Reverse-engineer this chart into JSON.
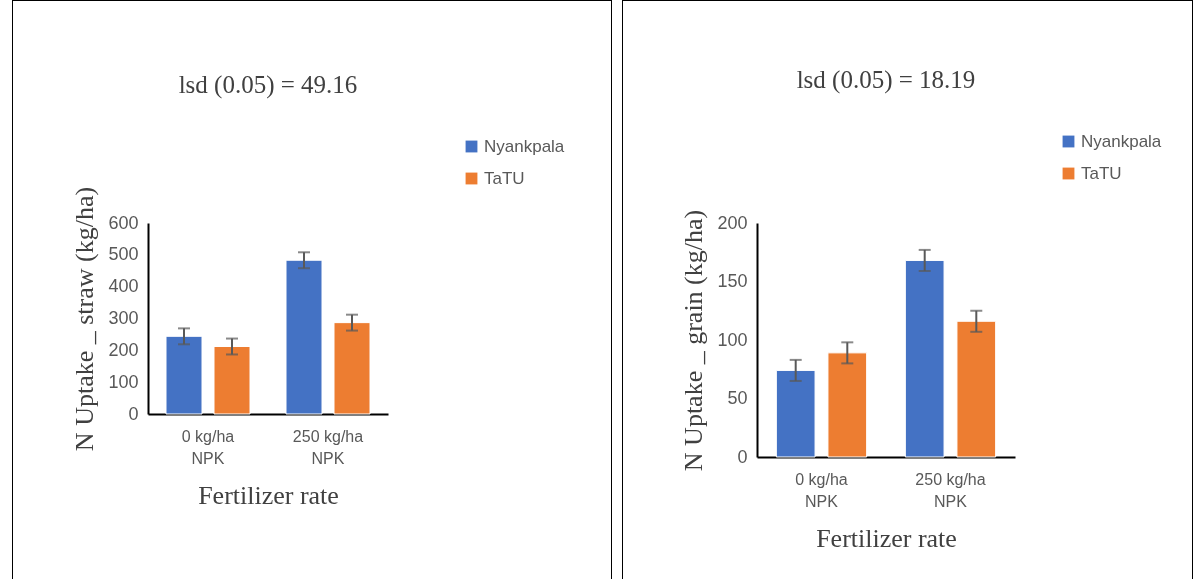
{
  "chart_data": [
    {
      "type": "bar",
      "title": "lsd (0.05) = 49.16",
      "xlabel": "Fertilizer rate",
      "ylabel": "N Uptake _ straw (kg/ha)",
      "categories": [
        "0 kg/ha NPK",
        "250 kg/ha NPK"
      ],
      "series": [
        {
          "name": "Nyankpala",
          "color": "#4472c4",
          "values": [
            244,
            483
          ],
          "errors": [
            25,
            25
          ]
        },
        {
          "name": "TaTU",
          "color": "#ed7d31",
          "values": [
            212,
            287
          ],
          "errors": [
            25,
            25
          ]
        }
      ],
      "ylim": [
        0,
        600
      ],
      "yticks": [
        0,
        100,
        200,
        300,
        400,
        500,
        600
      ],
      "legend": "top right"
    },
    {
      "type": "bar",
      "title": "lsd (0.05) = 18.19",
      "xlabel": "Fertilizer rate",
      "ylabel": "N Uptake _ grain (kg/ha)",
      "categories": [
        "0 kg/ha NPK",
        "250 kg/ha NPK"
      ],
      "series": [
        {
          "name": "Nyankpala",
          "color": "#4472c4",
          "values": [
            74,
            168
          ],
          "errors": [
            9,
            9
          ]
        },
        {
          "name": "TaTU",
          "color": "#ed7d31",
          "values": [
            89,
            116
          ],
          "errors": [
            9,
            9
          ]
        }
      ],
      "ylim": [
        0,
        200
      ],
      "yticks": [
        0,
        50,
        100,
        150,
        200
      ],
      "legend": "top right"
    }
  ]
}
